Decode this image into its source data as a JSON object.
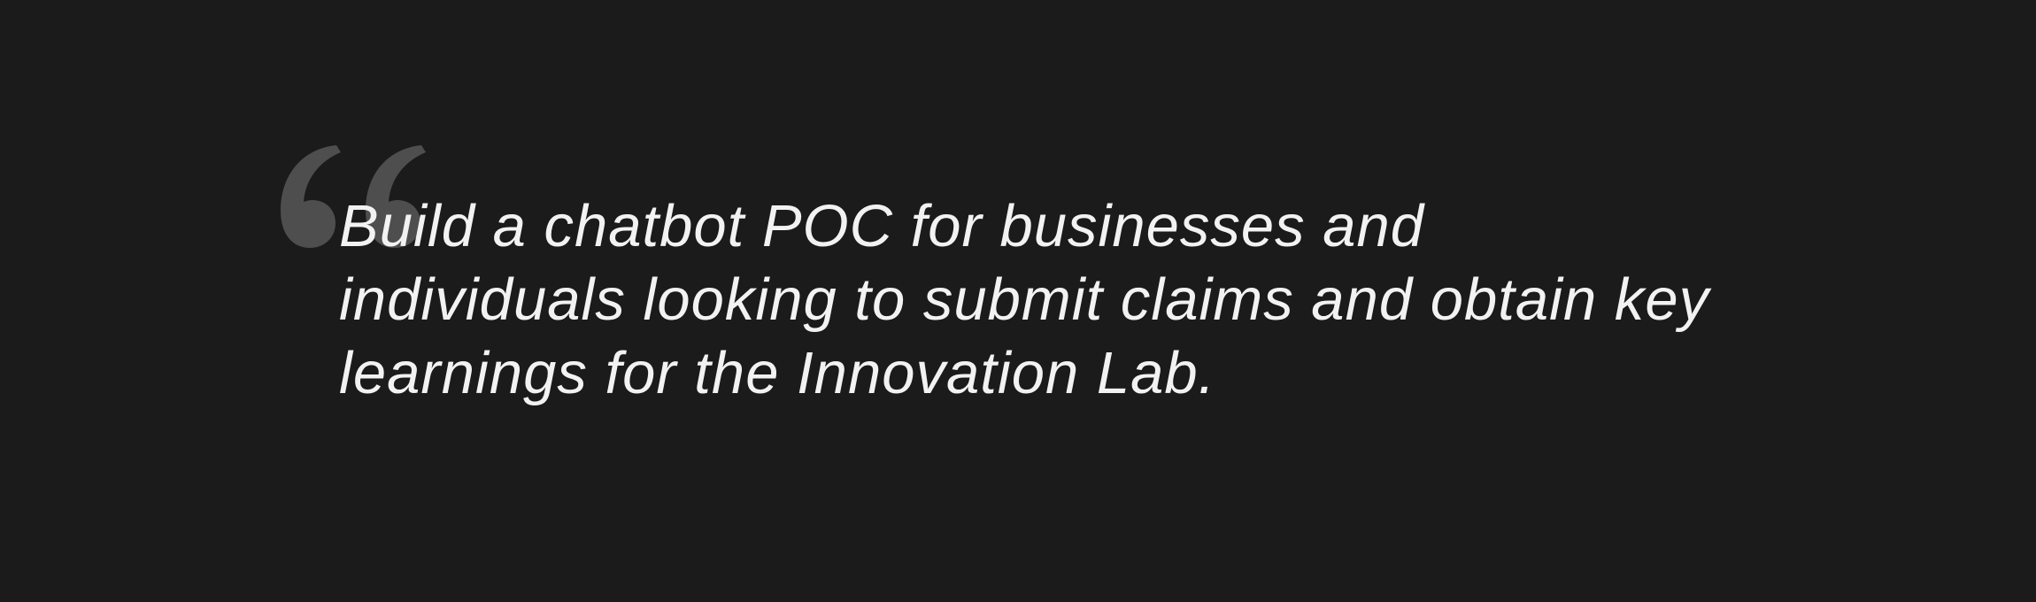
{
  "quote": {
    "lines": [
      "Build a chatbot POC for businesses and",
      "individuals looking to submit claims and obtain key",
      "learnings for the Innovation Lab."
    ],
    "mark_icon": "opening-quote-icon"
  },
  "colors": {
    "background": "#1b1b1b",
    "text": "#f2f2f2",
    "quote_mark": "#4e4e4e"
  }
}
